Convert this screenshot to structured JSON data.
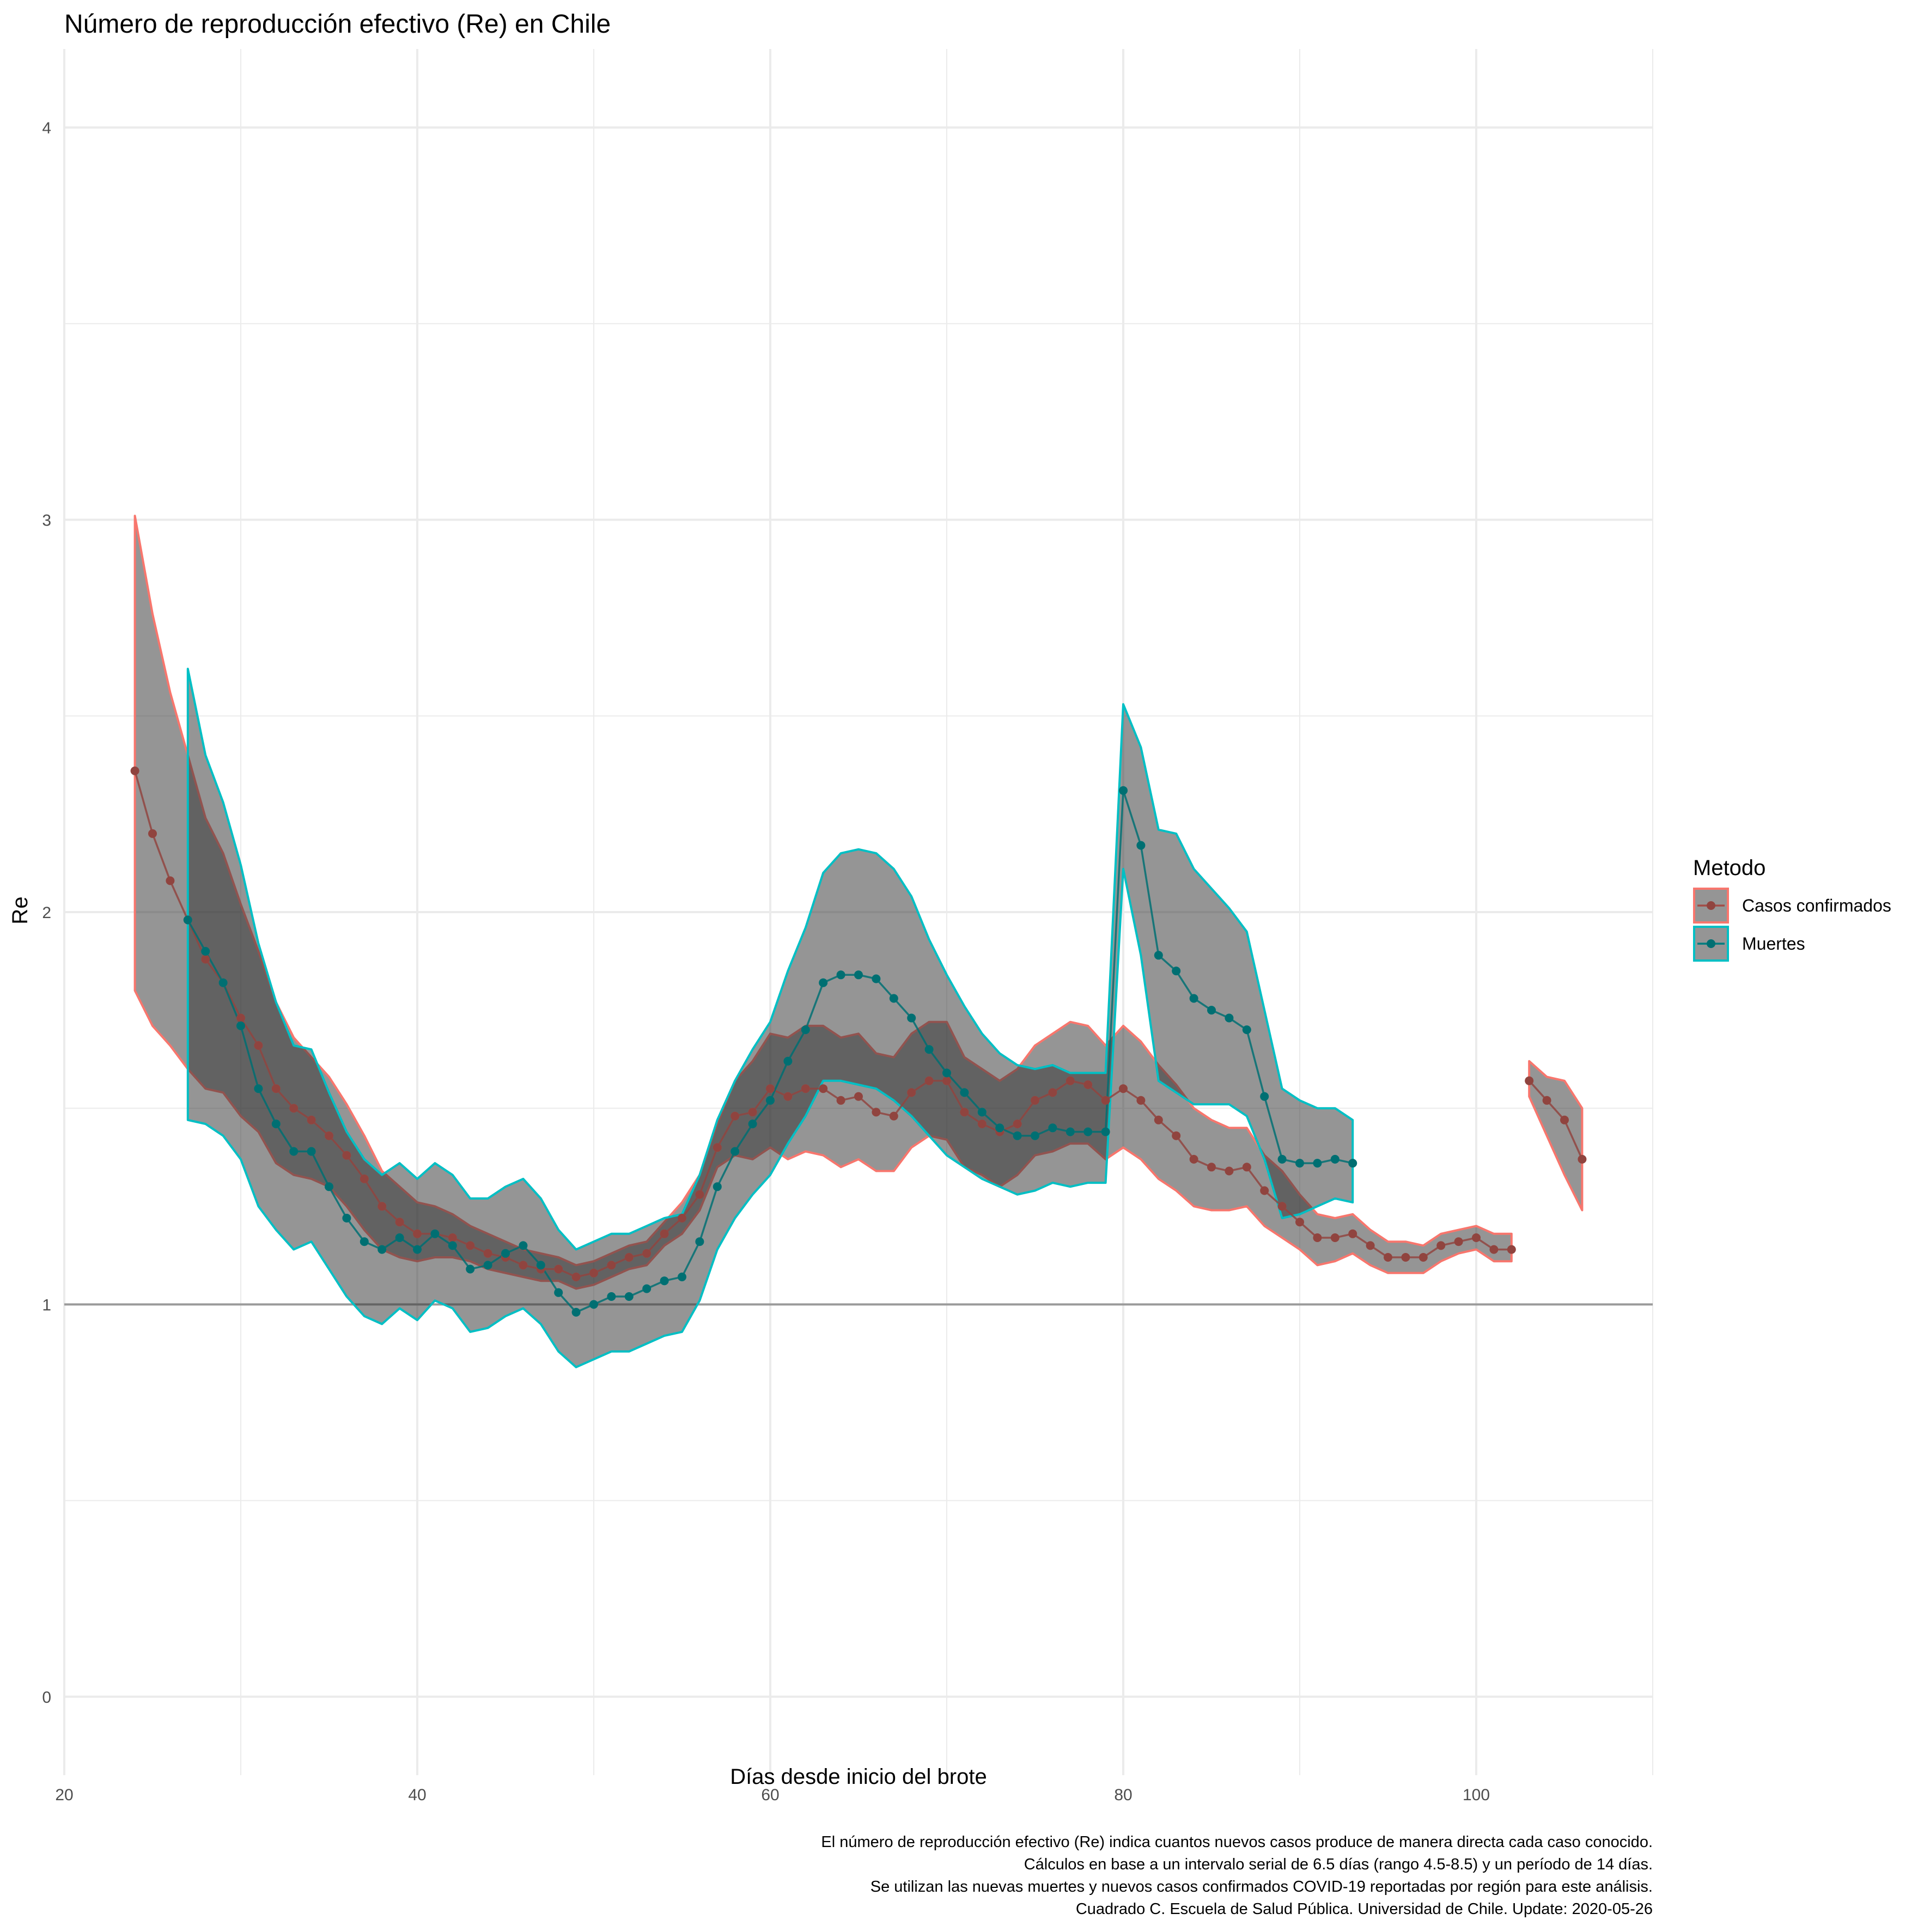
{
  "chart_data": {
    "type": "line",
    "title": "Número de reproducción efectivo (Re) en Chile",
    "xlabel": "Días desde inicio del brote",
    "ylabel": "Re",
    "xlim": [
      20,
      110
    ],
    "ylim": [
      -0.2,
      4.2
    ],
    "x_ticks": [
      20,
      40,
      60,
      80,
      100
    ],
    "y_ticks": [
      0,
      1,
      2,
      3,
      4
    ],
    "x_tick_labels": [
      "20",
      "40",
      "60",
      "80",
      "100"
    ],
    "y_tick_labels": [
      "0",
      "1",
      "2",
      "3",
      "4"
    ],
    "grid": true,
    "reference_line": 1,
    "legend": {
      "title": "Metodo",
      "placement": "right",
      "entries": [
        "Casos confirmados",
        "Muertes"
      ]
    },
    "caption": [
      "El número de reproducción efectivo (Re) indica cuantos nuevos casos produce de manera directa cada caso conocido.",
      "Cálculos en base a un intervalo serial de 6.5 días (rango 4.5-8.5) y un período de 14 días.",
      "Se utilizan las nuevas muertes y nuevos casos confirmados COVID-19 reportadas por región para este análisis.",
      "Cuadrado C. Escuela de Salud Pública. Universidad de Chile. Update: 2020-05-26"
    ],
    "series": [
      {
        "name": "Casos confirmados",
        "color": "#F8766D",
        "segments": [
          {
            "x": [
              24,
              25,
              26,
              27,
              28,
              29,
              30,
              31,
              32,
              33,
              34,
              35,
              36,
              37,
              38,
              39,
              40,
              41,
              42,
              43,
              44,
              45,
              46,
              47,
              48,
              49,
              50,
              51,
              52,
              53,
              54,
              55,
              56,
              57,
              58,
              59,
              60,
              61,
              62,
              63,
              64,
              65,
              66,
              67,
              68,
              69,
              70,
              71,
              72,
              73,
              74,
              75,
              76,
              77,
              78,
              79,
              80,
              81,
              82,
              83,
              84,
              85,
              86,
              87,
              88,
              89,
              90,
              91,
              92,
              93,
              94,
              95,
              96,
              97,
              98,
              99,
              100,
              101,
              102
            ],
            "y": [
              2.36,
              2.2,
              2.08,
              1.98,
              1.88,
              1.82,
              1.73,
              1.66,
              1.55,
              1.5,
              1.47,
              1.43,
              1.38,
              1.32,
              1.25,
              1.21,
              1.18,
              1.18,
              1.17,
              1.15,
              1.13,
              1.12,
              1.1,
              1.09,
              1.09,
              1.07,
              1.08,
              1.1,
              1.12,
              1.13,
              1.18,
              1.22,
              1.28,
              1.4,
              1.48,
              1.49,
              1.55,
              1.53,
              1.55,
              1.55,
              1.52,
              1.53,
              1.49,
              1.48,
              1.54,
              1.57,
              1.57,
              1.49,
              1.46,
              1.44,
              1.46,
              1.52,
              1.54,
              1.57,
              1.56,
              1.52,
              1.55,
              1.52,
              1.47,
              1.43,
              1.37,
              1.35,
              1.34,
              1.35,
              1.29,
              1.25,
              1.21,
              1.17,
              1.17,
              1.18,
              1.15,
              1.12,
              1.12,
              1.12,
              1.15,
              1.16,
              1.17,
              1.14,
              1.14
            ],
            "lower": [
              1.8,
              1.71,
              1.66,
              1.6,
              1.55,
              1.54,
              1.48,
              1.44,
              1.36,
              1.33,
              1.32,
              1.3,
              1.25,
              1.19,
              1.14,
              1.12,
              1.11,
              1.12,
              1.12,
              1.11,
              1.09,
              1.08,
              1.07,
              1.06,
              1.06,
              1.04,
              1.05,
              1.07,
              1.09,
              1.1,
              1.15,
              1.18,
              1.24,
              1.35,
              1.38,
              1.37,
              1.4,
              1.37,
              1.39,
              1.38,
              1.35,
              1.37,
              1.34,
              1.34,
              1.4,
              1.43,
              1.42,
              1.35,
              1.33,
              1.3,
              1.33,
              1.38,
              1.39,
              1.41,
              1.41,
              1.37,
              1.4,
              1.37,
              1.32,
              1.29,
              1.25,
              1.24,
              1.24,
              1.25,
              1.2,
              1.17,
              1.14,
              1.1,
              1.11,
              1.13,
              1.1,
              1.08,
              1.08,
              1.08,
              1.11,
              1.13,
              1.14,
              1.11,
              1.11
            ],
            "upper": [
              3.01,
              2.76,
              2.56,
              2.4,
              2.24,
              2.15,
              2.02,
              1.9,
              1.77,
              1.68,
              1.63,
              1.58,
              1.51,
              1.43,
              1.34,
              1.3,
              1.26,
              1.25,
              1.23,
              1.2,
              1.18,
              1.16,
              1.14,
              1.13,
              1.12,
              1.1,
              1.11,
              1.13,
              1.15,
              1.16,
              1.21,
              1.26,
              1.33,
              1.46,
              1.57,
              1.62,
              1.69,
              1.68,
              1.71,
              1.71,
              1.68,
              1.69,
              1.64,
              1.63,
              1.69,
              1.72,
              1.72,
              1.63,
              1.6,
              1.57,
              1.6,
              1.66,
              1.69,
              1.72,
              1.71,
              1.66,
              1.71,
              1.67,
              1.61,
              1.56,
              1.5,
              1.47,
              1.45,
              1.45,
              1.38,
              1.34,
              1.28,
              1.23,
              1.22,
              1.23,
              1.19,
              1.16,
              1.16,
              1.15,
              1.18,
              1.19,
              1.2,
              1.18,
              1.18
            ]
          },
          {
            "x": [
              103,
              104,
              105,
              106
            ],
            "y": [
              1.57,
              1.52,
              1.47,
              1.37
            ],
            "lower": [
              1.53,
              1.43,
              1.33,
              1.24
            ],
            "upper": [
              1.62,
              1.58,
              1.57,
              1.5
            ]
          }
        ]
      },
      {
        "name": "Muertes",
        "color": "#00BFC4",
        "segments": [
          {
            "x": [
              27,
              28,
              29,
              30,
              31,
              32,
              33,
              34,
              35,
              36,
              37,
              38,
              39,
              40,
              41,
              42,
              43,
              44,
              45,
              46,
              47,
              48,
              49,
              50,
              51,
              52,
              53,
              54,
              55,
              56,
              57,
              58,
              59,
              60,
              61,
              62,
              63,
              64,
              65,
              66,
              67,
              68,
              69,
              70,
              71,
              72,
              73,
              74,
              75,
              76,
              77,
              78,
              79,
              80,
              81,
              82,
              83,
              84,
              85,
              86,
              87,
              88,
              89,
              90,
              91,
              92,
              93
            ],
            "y": [
              1.98,
              1.9,
              1.82,
              1.71,
              1.55,
              1.46,
              1.39,
              1.39,
              1.3,
              1.22,
              1.16,
              1.14,
              1.17,
              1.14,
              1.18,
              1.15,
              1.09,
              1.1,
              1.13,
              1.15,
              1.1,
              1.03,
              0.98,
              1.0,
              1.02,
              1.02,
              1.04,
              1.06,
              1.07,
              1.16,
              1.3,
              1.39,
              1.46,
              1.52,
              1.62,
              1.7,
              1.82,
              1.84,
              1.84,
              1.83,
              1.78,
              1.73,
              1.65,
              1.59,
              1.54,
              1.49,
              1.45,
              1.43,
              1.43,
              1.45,
              1.44,
              1.44,
              1.44,
              2.31,
              2.17,
              1.89,
              1.85,
              1.78,
              1.75,
              1.73,
              1.7,
              1.53,
              1.37,
              1.36,
              1.36,
              1.37,
              1.36
            ],
            "lower": [
              1.47,
              1.46,
              1.43,
              1.37,
              1.25,
              1.19,
              1.14,
              1.16,
              1.09,
              1.02,
              0.97,
              0.95,
              0.99,
              0.96,
              1.01,
              0.99,
              0.93,
              0.94,
              0.97,
              0.99,
              0.95,
              0.88,
              0.84,
              0.86,
              0.88,
              0.88,
              0.9,
              0.92,
              0.93,
              1.01,
              1.14,
              1.22,
              1.28,
              1.33,
              1.41,
              1.48,
              1.57,
              1.57,
              1.56,
              1.55,
              1.52,
              1.48,
              1.43,
              1.38,
              1.35,
              1.32,
              1.3,
              1.28,
              1.29,
              1.31,
              1.3,
              1.31,
              1.31,
              2.11,
              1.89,
              1.57,
              1.54,
              1.51,
              1.51,
              1.51,
              1.48,
              1.37,
              1.22,
              1.23,
              1.25,
              1.27,
              1.26
            ],
            "upper": [
              2.62,
              2.4,
              2.28,
              2.12,
              1.92,
              1.77,
              1.66,
              1.65,
              1.54,
              1.44,
              1.37,
              1.33,
              1.36,
              1.32,
              1.36,
              1.33,
              1.27,
              1.27,
              1.3,
              1.32,
              1.27,
              1.19,
              1.14,
              1.16,
              1.18,
              1.18,
              1.2,
              1.22,
              1.23,
              1.33,
              1.47,
              1.57,
              1.65,
              1.72,
              1.85,
              1.96,
              2.1,
              2.15,
              2.16,
              2.15,
              2.11,
              2.04,
              1.93,
              1.84,
              1.76,
              1.69,
              1.64,
              1.61,
              1.6,
              1.61,
              1.59,
              1.59,
              1.59,
              2.53,
              2.42,
              2.21,
              2.2,
              2.11,
              2.06,
              2.01,
              1.95,
              1.75,
              1.55,
              1.52,
              1.5,
              1.5,
              1.47
            ]
          }
        ]
      }
    ]
  }
}
